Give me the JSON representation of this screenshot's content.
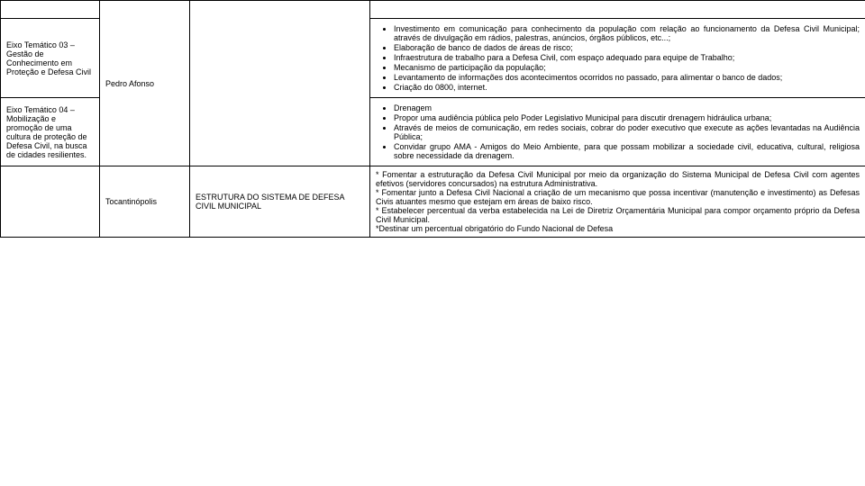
{
  "row0": {
    "c1": "",
    "c2": "",
    "c3": "",
    "c4": ""
  },
  "row1": {
    "c1": "Eixo Temático 03 – Gestão de Conhecimento em Proteção e Defesa Civil",
    "bullets": [
      "Investimento em comunicação para conhecimento da população com relação ao funcionamento da Defesa Civil Municipal; através de divulgação em rádios, palestras, anúncios, órgãos públicos, etc...;",
      "Elaboração de banco de dados de áreas de risco;",
      "Infraestrutura de trabalho para a Defesa Civil, com espaço adequado para equipe de Trabalho;",
      "Mecanismo de participação da população;",
      "Levantamento de informações dos acontecimentos ocorridos no passado, para alimentar o banco de dados;",
      "Criação do 0800, internet."
    ]
  },
  "row2": {
    "c1": "Eixo Temático 04 – Mobilização e promoção de uma cultura de proteção de Defesa Civil, na busca de cidades resilientes.",
    "c2": "Pedro Afonso",
    "bullets": [
      "Drenagem",
      "Propor uma audiência pública pelo Poder Legislativo Municipal para discutir drenagem hidráulica urbana;",
      "Através de meios de comunicação, em redes sociais, cobrar do poder executivo que execute as ações levantadas na Audiência Pública;",
      "Convidar grupo AMA - Amigos do Meio Ambiente, para que possam mobilizar a sociedade civil, educativa, cultural, religiosa sobre necessidade da drenagem."
    ]
  },
  "row3": {
    "c2": "Tocantinópolis",
    "c3": "ESTRUTURA DO SISTEMA DE DEFESA CIVIL MUNICIPAL",
    "c4": "* Fomentar a estruturação da Defesa Civil Municipal por meio da organização do Sistema Municipal de Defesa Civil com agentes efetivos (servidores concursados) na estrutura Administrativa.\n* Fomentar junto a Defesa Civil Nacional a criação de um mecanismo que possa incentivar (manutenção e investimento) as Defesas Civis atuantes mesmo que estejam em áreas de baixo risco.\n* Estabelecer percentual da verba estabelecida na Lei de Diretriz Orçamentária Municipal para compor orçamento próprio da Defesa Civil Municipal.\n*Destinar um percentual obrigatório do Fundo Nacional de Defesa"
  }
}
